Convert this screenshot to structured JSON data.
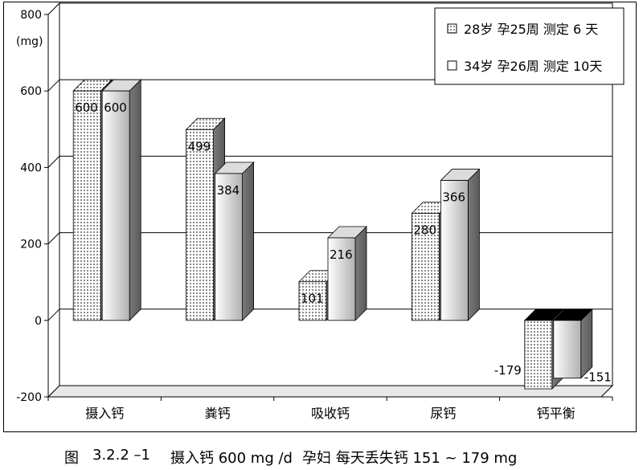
{
  "chart_data": {
    "type": "bar",
    "unit_label": "(mg)",
    "categories": [
      "摄入钙",
      "粪钙",
      "吸收钙",
      "尿钙",
      "钙平衡"
    ],
    "series": [
      {
        "name": "28岁 孕25周 测定 6 天",
        "values": [
          600,
          499,
          101,
          280,
          -179
        ],
        "pattern": "grid"
      },
      {
        "name": "34岁 孕26周 测定 10天",
        "values": [
          600,
          384,
          216,
          366,
          -151
        ],
        "pattern": "white"
      }
    ],
    "data_labels": [
      [
        "600",
        "499",
        "101",
        "280",
        "-179"
      ],
      [
        "600",
        "384",
        "216",
        "366",
        "-151"
      ]
    ],
    "y_ticks": [
      800,
      600,
      400,
      200,
      0,
      -200
    ],
    "ylim": [
      -200,
      800
    ],
    "grid": true,
    "legend_position": "top-right"
  },
  "caption": {
    "figure": "图",
    "number": "3.2.2 –1",
    "text_part1": "摄入钙 600 mg /d",
    "text_part2": "孕妇 每天丢失钙 151 ~ 179 mg"
  },
  "colors": {
    "grid_line": "#000000",
    "bar_front_light": "#ffffff",
    "bar_front_dark": "#b0b0b0",
    "bar_side": "#5a5a5a",
    "bar_top": "#dcdcdc",
    "pattern_dot": "#8a8a8a",
    "negative_top": "#000000"
  }
}
